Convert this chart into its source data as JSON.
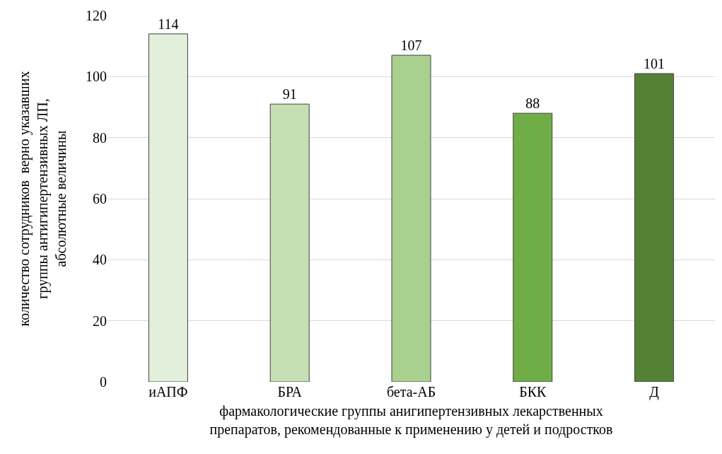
{
  "chart_data": {
    "type": "bar",
    "categories": [
      "иАПФ",
      "БРА",
      "бета-АБ",
      "БКК",
      "Д"
    ],
    "values": [
      114,
      91,
      107,
      88,
      101
    ],
    "colors": [
      "#e2efda",
      "#c6e0b4",
      "#a9d08e",
      "#70ad47",
      "#548235"
    ],
    "xlabel": "фармакологические группы анигипертензивных лекарственных\nпрепаратов, рекомендованные к применению у детей и подростков",
    "ylabel": "количество сотрудников  верно указавших\nгруппы антигипертензивных ЛП,\nабсолютные величины",
    "ylim": [
      0,
      120
    ],
    "yticks": [
      0,
      20,
      40,
      60,
      80,
      100,
      120
    ],
    "grid": "y",
    "data_labels": true
  }
}
